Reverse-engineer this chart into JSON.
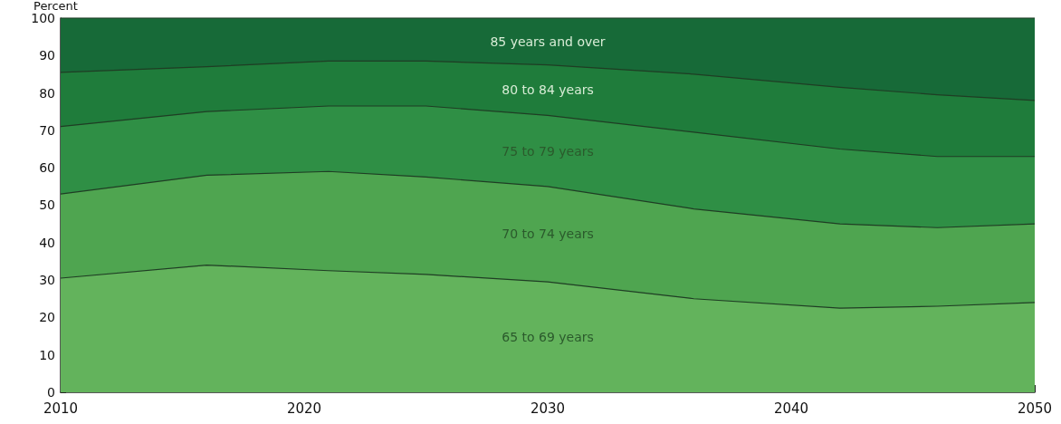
{
  "chart_data": {
    "type": "area",
    "stacked": true,
    "ylabel": "Percent",
    "x": [
      2010,
      2016,
      2021,
      2025,
      2030,
      2036,
      2042,
      2046,
      2050
    ],
    "series": [
      {
        "name": "65 to 69 years",
        "color": "#63b35c",
        "values": [
          30.5,
          34,
          32.5,
          31.5,
          29.5,
          25,
          22.5,
          23,
          24
        ]
      },
      {
        "name": "70 to 74 years",
        "color": "#4fa550",
        "values": [
          22.5,
          24,
          26.5,
          26,
          25.5,
          24,
          22.5,
          21,
          21
        ]
      },
      {
        "name": "75 to 79 years",
        "color": "#2f8f45",
        "values": [
          18,
          17,
          17.5,
          19,
          19,
          20.5,
          20,
          19,
          18
        ]
      },
      {
        "name": "80 to 84 years",
        "color": "#1f7c3b",
        "values": [
          14.5,
          12,
          12,
          12,
          13.5,
          15.5,
          16.5,
          16.5,
          15
        ]
      },
      {
        "name": "85 years and over",
        "color": "#176a38",
        "values": [
          14.5,
          13,
          11.5,
          11.5,
          12.5,
          15,
          18.5,
          20.5,
          22
        ]
      }
    ],
    "xlim": [
      2010,
      2050
    ],
    "xticks": [
      2010,
      2020,
      2030,
      2040,
      2050
    ],
    "ylim": [
      0,
      100
    ],
    "yticks": [
      0,
      10,
      20,
      30,
      40,
      50,
      60,
      70,
      80,
      90,
      100
    ],
    "grid": false,
    "legend": false,
    "marker": "none",
    "line_style": "solid"
  }
}
